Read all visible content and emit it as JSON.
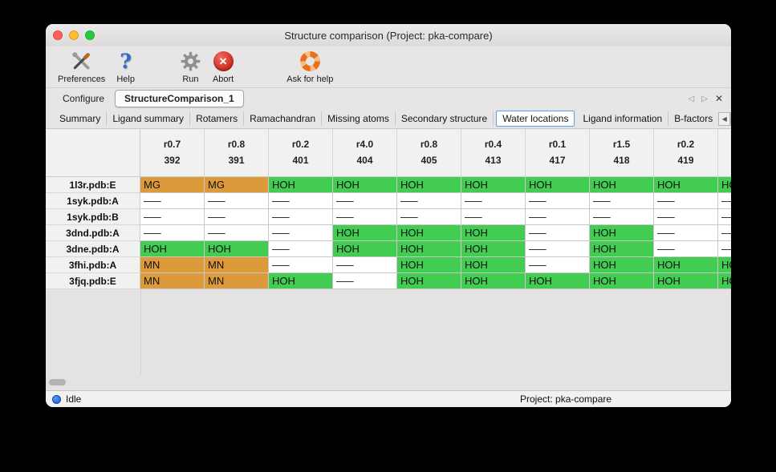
{
  "window": {
    "title": "Structure comparison (Project: pka-compare)"
  },
  "toolbar": {
    "items": [
      {
        "label": "Preferences",
        "icon": "preferences-icon"
      },
      {
        "label": "Help",
        "icon": "help-icon"
      },
      {
        "label": "Run",
        "icon": "run-gear-icon"
      },
      {
        "label": "Abort",
        "icon": "abort-icon"
      },
      {
        "label": "Ask for help",
        "icon": "lifebuoy-icon"
      }
    ]
  },
  "main_tabs": {
    "items": [
      {
        "label": "Configure",
        "active": false
      },
      {
        "label": "StructureComparison_1",
        "active": true
      }
    ],
    "nav": {
      "back": "◁",
      "forward": "▷",
      "close": "✕"
    }
  },
  "sub_tabs": {
    "items": [
      "Summary",
      "Ligand summary",
      "Rotamers",
      "Ramachandran",
      "Missing atoms",
      "Secondary structure",
      "Water locations",
      "Ligand information",
      "B-factors"
    ],
    "selected": "Water locations",
    "nav": {
      "back": "◀",
      "forward": "▶"
    }
  },
  "table": {
    "columns": [
      {
        "radius": "r0.7",
        "id": "392"
      },
      {
        "radius": "r0.8",
        "id": "391"
      },
      {
        "radius": "r0.2",
        "id": "401"
      },
      {
        "radius": "r4.0",
        "id": "404"
      },
      {
        "radius": "r0.8",
        "id": "405"
      },
      {
        "radius": "r0.4",
        "id": "413"
      },
      {
        "radius": "r0.1",
        "id": "417"
      },
      {
        "radius": "r1.5",
        "id": "418"
      },
      {
        "radius": "r0.2",
        "id": "419"
      },
      {
        "radius": "",
        "id": ""
      }
    ],
    "rows": [
      {
        "label": "1l3r.pdb:E",
        "cells": [
          {
            "text": "MG",
            "type": "metal"
          },
          {
            "text": "MG",
            "type": "metal"
          },
          {
            "text": "HOH",
            "type": "water"
          },
          {
            "text": "HOH",
            "type": "water"
          },
          {
            "text": "HOH",
            "type": "water"
          },
          {
            "text": "HOH",
            "type": "water"
          },
          {
            "text": "HOH",
            "type": "water"
          },
          {
            "text": "HOH",
            "type": "water"
          },
          {
            "text": "HOH",
            "type": "water"
          },
          {
            "text": "HOH",
            "type": "water"
          }
        ]
      },
      {
        "label": "1syk.pdb:A",
        "cells": [
          {
            "text": "–––",
            "type": "empty"
          },
          {
            "text": "–––",
            "type": "empty"
          },
          {
            "text": "–––",
            "type": "empty"
          },
          {
            "text": "–––",
            "type": "empty"
          },
          {
            "text": "–––",
            "type": "empty"
          },
          {
            "text": "–––",
            "type": "empty"
          },
          {
            "text": "–––",
            "type": "empty"
          },
          {
            "text": "–––",
            "type": "empty"
          },
          {
            "text": "–––",
            "type": "empty"
          },
          {
            "text": "–––",
            "type": "empty"
          }
        ]
      },
      {
        "label": "1syk.pdb:B",
        "cells": [
          {
            "text": "–––",
            "type": "empty"
          },
          {
            "text": "–––",
            "type": "empty"
          },
          {
            "text": "–––",
            "type": "empty"
          },
          {
            "text": "–––",
            "type": "empty"
          },
          {
            "text": "–––",
            "type": "empty"
          },
          {
            "text": "–––",
            "type": "empty"
          },
          {
            "text": "–––",
            "type": "empty"
          },
          {
            "text": "–––",
            "type": "empty"
          },
          {
            "text": "–––",
            "type": "empty"
          },
          {
            "text": "–––",
            "type": "empty"
          }
        ]
      },
      {
        "label": "3dnd.pdb:A",
        "cells": [
          {
            "text": "–––",
            "type": "empty"
          },
          {
            "text": "–––",
            "type": "empty"
          },
          {
            "text": "–––",
            "type": "empty"
          },
          {
            "text": "HOH",
            "type": "water"
          },
          {
            "text": "HOH",
            "type": "water"
          },
          {
            "text": "HOH",
            "type": "water"
          },
          {
            "text": "–––",
            "type": "empty"
          },
          {
            "text": "HOH",
            "type": "water"
          },
          {
            "text": "–––",
            "type": "empty"
          },
          {
            "text": "–––",
            "type": "empty"
          }
        ]
      },
      {
        "label": "3dne.pdb:A",
        "cells": [
          {
            "text": "HOH",
            "type": "water"
          },
          {
            "text": "HOH",
            "type": "water"
          },
          {
            "text": "–––",
            "type": "empty"
          },
          {
            "text": "HOH",
            "type": "water"
          },
          {
            "text": "HOH",
            "type": "water"
          },
          {
            "text": "HOH",
            "type": "water"
          },
          {
            "text": "–––",
            "type": "empty"
          },
          {
            "text": "HOH",
            "type": "water"
          },
          {
            "text": "–––",
            "type": "empty"
          },
          {
            "text": "–––",
            "type": "empty"
          }
        ]
      },
      {
        "label": "3fhi.pdb:A",
        "cells": [
          {
            "text": "MN",
            "type": "metal"
          },
          {
            "text": "MN",
            "type": "metal"
          },
          {
            "text": "–––",
            "type": "empty"
          },
          {
            "text": "–––",
            "type": "empty"
          },
          {
            "text": "HOH",
            "type": "water"
          },
          {
            "text": "HOH",
            "type": "water"
          },
          {
            "text": "–––",
            "type": "empty"
          },
          {
            "text": "HOH",
            "type": "water"
          },
          {
            "text": "HOH",
            "type": "water"
          },
          {
            "text": "HOH",
            "type": "water"
          }
        ]
      },
      {
        "label": "3fjq.pdb:E",
        "cells": [
          {
            "text": "MN",
            "type": "metal"
          },
          {
            "text": "MN",
            "type": "metal"
          },
          {
            "text": "HOH",
            "type": "water"
          },
          {
            "text": "–––",
            "type": "empty"
          },
          {
            "text": "HOH",
            "type": "water"
          },
          {
            "text": "HOH",
            "type": "water"
          },
          {
            "text": "HOH",
            "type": "water"
          },
          {
            "text": "HOH",
            "type": "water"
          },
          {
            "text": "HOH",
            "type": "water"
          },
          {
            "text": "HOH",
            "type": "water"
          }
        ]
      }
    ]
  },
  "status": {
    "state": "Idle",
    "project": "Project: pka-compare"
  },
  "colors": {
    "water_cell": "#42cd52",
    "metal_cell": "#dd9a3b",
    "selected_tab_border": "#6b9fd8"
  }
}
